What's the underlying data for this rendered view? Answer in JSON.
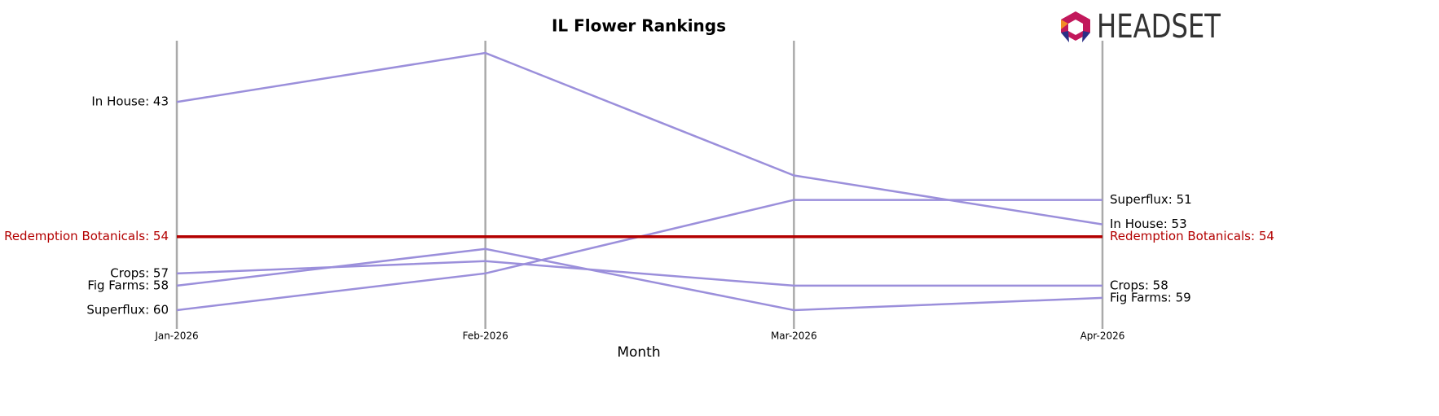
{
  "chart_data": {
    "type": "bump",
    "title": "IL Flower Rankings",
    "x_label": "Month",
    "logo": "HEADSET",
    "categories": [
      "Jan-2026",
      "Feb-2026",
      "Mar-2026",
      "Apr-2026"
    ],
    "ylim": [
      38,
      61
    ],
    "y_inverted": true,
    "series": [
      {
        "name": "In House",
        "color": "#9b8fdb",
        "highlight": false,
        "values": [
          43,
          39,
          49,
          53
        ],
        "value_labels": [
          "In House: 43",
          null,
          null,
          "In House: 53"
        ]
      },
      {
        "name": "Superflux",
        "color": "#9b8fdb",
        "highlight": false,
        "values": [
          60,
          57,
          51,
          51
        ],
        "value_labels": [
          "Superflux: 60",
          null,
          null,
          "Superflux: 51"
        ]
      },
      {
        "name": "Crops",
        "color": "#9b8fdb",
        "highlight": false,
        "values": [
          57,
          56,
          58,
          58
        ],
        "value_labels": [
          "Crops: 57",
          null,
          null,
          "Crops: 58"
        ]
      },
      {
        "name": "Fig Farms",
        "color": "#9b8fdb",
        "highlight": false,
        "values": [
          58,
          55,
          60,
          59
        ],
        "value_labels": [
          "Fig Farms: 58",
          null,
          null,
          "Fig Farms: 59"
        ]
      },
      {
        "name": "Redemption Botanicals",
        "color": "#b30000",
        "highlight": true,
        "values": [
          54,
          54,
          54,
          54
        ],
        "value_labels": [
          "Redemption Botanicals: 54",
          null,
          null,
          "Redemption Botanicals: 54"
        ]
      }
    ]
  }
}
